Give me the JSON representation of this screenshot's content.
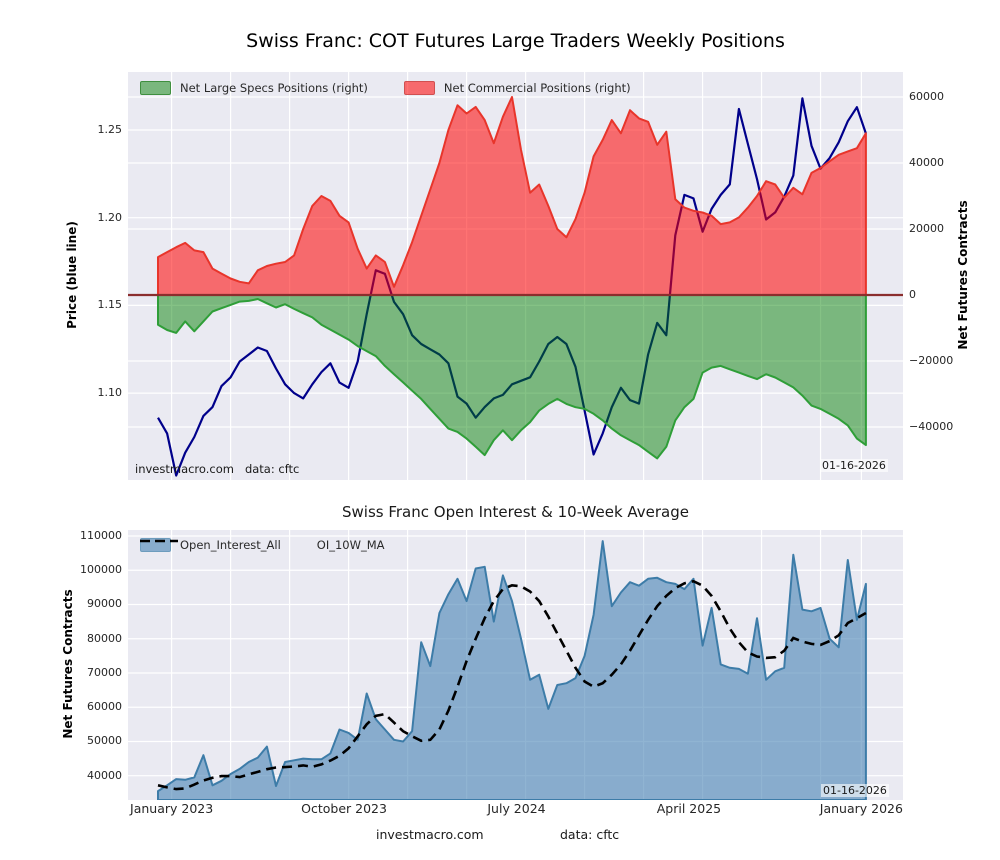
{
  "figure": {
    "footer_left": "investmacro.com",
    "footer_right": "data: cftc"
  },
  "colors": {
    "plot_bg": "#eaeaf2",
    "grid": "#ffffff",
    "price_line": "#00008b",
    "commercial_fill": "#ff0000",
    "commercial_edge": "#e8352b",
    "commercial_opacity": 0.55,
    "specs_fill": "#008000",
    "specs_edge": "#2f9e38",
    "specs_opacity": 0.48,
    "zero_line": "#8b2e2e",
    "oi_fill": "#4682b4",
    "oi_edge": "#3d7ca8",
    "oi_opacity": 0.6,
    "ma_line": "#000000"
  },
  "chart_data": [
    {
      "type": "area+line",
      "title": "Swiss Franc: COT Futures Large Traders Weekly Positions",
      "ylabel_left": "Price (blue line)",
      "ylabel_right": "Net Futures Contracts",
      "legend": [
        {
          "label": "Net Large Specs Positions (right)"
        },
        {
          "label": "Net Commercial Positions (right)"
        }
      ],
      "annotations": {
        "watermark": "investmacro.com",
        "source": "data: cftc",
        "date": "01-16-2026"
      },
      "x_start_label": "January 2023",
      "weeks_step": 2,
      "x_tick_weeks": [
        3,
        41,
        79,
        117,
        155
      ],
      "x_tick_labels": [
        "January 2023",
        "October 2023",
        "July 2024",
        "April 2025",
        "January 2026"
      ],
      "x_grid_weeks": [
        3,
        16,
        29,
        42,
        55,
        68,
        81,
        94,
        107,
        120,
        133,
        146,
        155
      ],
      "yticks_left": {
        "values": [
          1.25,
          1.2,
          1.15,
          1.1
        ],
        "labels": [
          "1.25",
          "1.20",
          "1.15",
          "1.10"
        ]
      },
      "ylim_left": [
        1.0505,
        1.2831
      ],
      "yticks_right": {
        "values": [
          60000,
          40000,
          20000,
          0,
          -20000,
          -40000
        ],
        "labels": [
          "60000",
          "40000",
          "20000",
          "0",
          "−20000",
          "−40000"
        ]
      },
      "ylim_right": [
        -56000,
        67500
      ],
      "series": [
        {
          "name": "Price",
          "axis": "left",
          "values": [
            1.086,
            1.077,
            1.053,
            1.066,
            1.075,
            1.087,
            1.092,
            1.104,
            1.109,
            1.118,
            1.122,
            1.126,
            1.124,
            1.114,
            1.105,
            1.1,
            1.097,
            1.105,
            1.112,
            1.117,
            1.106,
            1.103,
            1.118,
            1.145,
            1.17,
            1.168,
            1.152,
            1.145,
            1.133,
            1.128,
            1.125,
            1.122,
            1.117,
            1.098,
            1.094,
            1.086,
            1.092,
            1.097,
            1.099,
            1.105,
            1.107,
            1.109,
            1.118,
            1.128,
            1.132,
            1.128,
            1.115,
            1.09,
            1.065,
            1.077,
            1.092,
            1.103,
            1.096,
            1.094,
            1.122,
            1.14,
            1.133,
            1.19,
            1.213,
            1.211,
            1.192,
            1.205,
            1.213,
            1.219,
            1.262,
            1.242,
            1.222,
            1.199,
            1.203,
            1.212,
            1.224,
            1.268,
            1.241,
            1.228,
            1.234,
            1.243,
            1.255,
            1.263,
            1.248
          ]
        },
        {
          "name": "Net Commercial Positions",
          "axis": "right",
          "values": [
            11500,
            13000,
            14500,
            15800,
            13500,
            13000,
            8000,
            6500,
            5000,
            4000,
            3500,
            7500,
            8800,
            9500,
            10000,
            12000,
            20000,
            27000,
            30000,
            28500,
            24000,
            22000,
            14000,
            8000,
            12000,
            10000,
            2500,
            9000,
            16000,
            24000,
            32000,
            40000,
            50000,
            57500,
            55000,
            57000,
            53000,
            46000,
            54000,
            60000,
            44000,
            31000,
            33500,
            27000,
            20000,
            17500,
            23000,
            31000,
            42000,
            47000,
            53000,
            49000,
            56000,
            53500,
            52500,
            45500,
            49500,
            29000,
            26500,
            25500,
            25000,
            24000,
            21500,
            22000,
            23500,
            26500,
            30000,
            34500,
            33500,
            29500,
            32500,
            30500,
            37000,
            38500,
            40500,
            42500,
            43500,
            44500,
            49000
          ]
        },
        {
          "name": "Net Large Specs Positions",
          "axis": "right",
          "values": [
            -9000,
            -10600,
            -11500,
            -8000,
            -11000,
            -8000,
            -5000,
            -4000,
            -3000,
            -2000,
            -1800,
            -1200,
            -2500,
            -3800,
            -2800,
            -4200,
            -5500,
            -6800,
            -9000,
            -10500,
            -12000,
            -13500,
            -15500,
            -17000,
            -18500,
            -21500,
            -24000,
            -26500,
            -29000,
            -31500,
            -34500,
            -37500,
            -40500,
            -41500,
            -43500,
            -46000,
            -48500,
            -44000,
            -41000,
            -44000,
            -41000,
            -38500,
            -35000,
            -33000,
            -31500,
            -33000,
            -34000,
            -34500,
            -36000,
            -38000,
            -40500,
            -42500,
            -44000,
            -45500,
            -47500,
            -49500,
            -46000,
            -38000,
            -34000,
            -31500,
            -23500,
            -22000,
            -21500,
            -22500,
            -23500,
            -24500,
            -25500,
            -24000,
            -25000,
            -26500,
            -28000,
            -30500,
            -33500,
            -34500,
            -36000,
            -37500,
            -39500,
            -43500,
            -45500
          ]
        }
      ]
    },
    {
      "type": "area+line",
      "title": "Swiss Franc Open Interest & 10-Week Average",
      "ylabel_left": "Net Futures Contracts",
      "legend": [
        {
          "label": "Open_Interest_All"
        },
        {
          "label": "OI_10W_MA"
        }
      ],
      "annotations": {
        "date": "01-16-2026"
      },
      "weeks_step": 2,
      "x_tick_weeks": [
        3,
        41,
        79,
        117,
        155
      ],
      "x_tick_labels": [
        "January 2023",
        "October 2023",
        "July 2024",
        "April 2025",
        "January 2026"
      ],
      "x_grid_weeks": [
        3,
        16,
        29,
        42,
        55,
        68,
        81,
        94,
        107,
        120,
        133,
        146,
        155
      ],
      "yticks_left": {
        "values": [
          110000,
          100000,
          90000,
          80000,
          70000,
          60000,
          50000,
          40000
        ],
        "labels": [
          "110000",
          "100000",
          "90000",
          "80000",
          "70000",
          "60000",
          "50000",
          "40000"
        ]
      },
      "ylim_left": [
        32800,
        111750
      ],
      "series": [
        {
          "name": "Open_Interest_All",
          "axis": "left",
          "values": [
            35500,
            37200,
            39000,
            38800,
            39500,
            46000,
            37200,
            38500,
            40500,
            42000,
            44000,
            45300,
            48500,
            37000,
            44000,
            44500,
            45000,
            44800,
            44800,
            46500,
            53500,
            52500,
            50500,
            64000,
            56500,
            53500,
            50500,
            50000,
            53000,
            79000,
            72000,
            87500,
            93000,
            97500,
            91000,
            100500,
            101000,
            85000,
            98500,
            91000,
            80000,
            68000,
            69500,
            59500,
            66500,
            67000,
            68500,
            75000,
            87000,
            108500,
            89500,
            93500,
            96500,
            95500,
            97500,
            97800,
            96500,
            96000,
            94500,
            97500,
            78000,
            89000,
            72500,
            71500,
            71200,
            69800,
            86000,
            68000,
            70500,
            71500,
            104500,
            88500,
            88000,
            89000,
            80000,
            77500,
            103000,
            85500,
            96000
          ]
        },
        {
          "name": "OI_10W_MA",
          "axis": "left",
          "values": [
            37200,
            36600,
            36100,
            36300,
            37400,
            38600,
            39400,
            39900,
            39900,
            39600,
            40400,
            41100,
            41900,
            42400,
            42500,
            42700,
            43000,
            42600,
            43300,
            44400,
            45800,
            48000,
            51500,
            55000,
            57500,
            58000,
            55500,
            53000,
            51500,
            50200,
            50500,
            53500,
            59000,
            66000,
            73500,
            80000,
            86000,
            91000,
            94500,
            95600,
            95300,
            93800,
            91000,
            86500,
            81500,
            76500,
            71500,
            67500,
            66000,
            67000,
            69500,
            72500,
            76500,
            81000,
            85500,
            89500,
            92500,
            94800,
            96200,
            96800,
            95500,
            92500,
            88000,
            83000,
            79000,
            76000,
            74800,
            74400,
            74600,
            76500,
            80200,
            79200,
            78500,
            78200,
            79300,
            81000,
            84600,
            86000,
            87500
          ]
        }
      ]
    }
  ]
}
